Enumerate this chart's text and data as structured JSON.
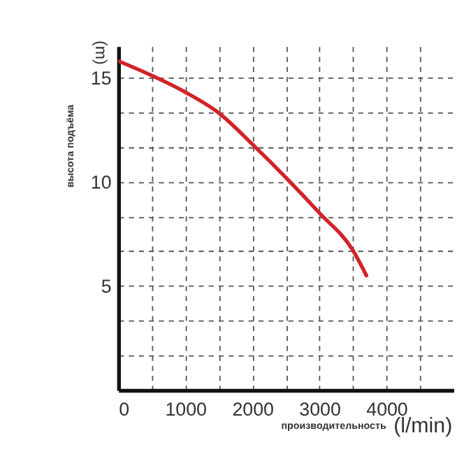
{
  "chart_data": {
    "type": "line",
    "xlabel": "производительность",
    "ylabel": "высота подъёма",
    "annotations": [
      "(m)",
      "(l/min)"
    ],
    "x": [
      0,
      500,
      1000,
      1500,
      2000,
      2500,
      3000,
      3500,
      3700
    ],
    "series": [
      {
        "color": "#d2232a",
        "values": [
          15.8,
          15.1,
          14.3,
          13.3,
          11.8,
          10.2,
          8.5,
          6.7,
          5.5
        ]
      }
    ],
    "xlim": [
      0,
      5000
    ],
    "ylim": [
      0,
      16.5
    ],
    "xticks": [
      0,
      {
        "value": 500,
        "label": null
      },
      1000,
      {
        "value": 1500,
        "label": null
      },
      2000,
      {
        "value": 2500,
        "label": null
      },
      3000,
      {
        "value": 3500,
        "label": null
      },
      4000,
      {
        "value": 4500,
        "label": null
      }
    ],
    "yticks": [
      {
        "value": 1.667,
        "label": null
      },
      {
        "value": 3.333,
        "label": null
      },
      5,
      {
        "value": 6.667,
        "label": null
      },
      {
        "value": 8.333,
        "label": null
      },
      10,
      {
        "value": 11.667,
        "label": null
      },
      {
        "value": 13.333,
        "label": null
      },
      15
    ],
    "grid": true,
    "marker": "none",
    "line_style": "solid"
  }
}
